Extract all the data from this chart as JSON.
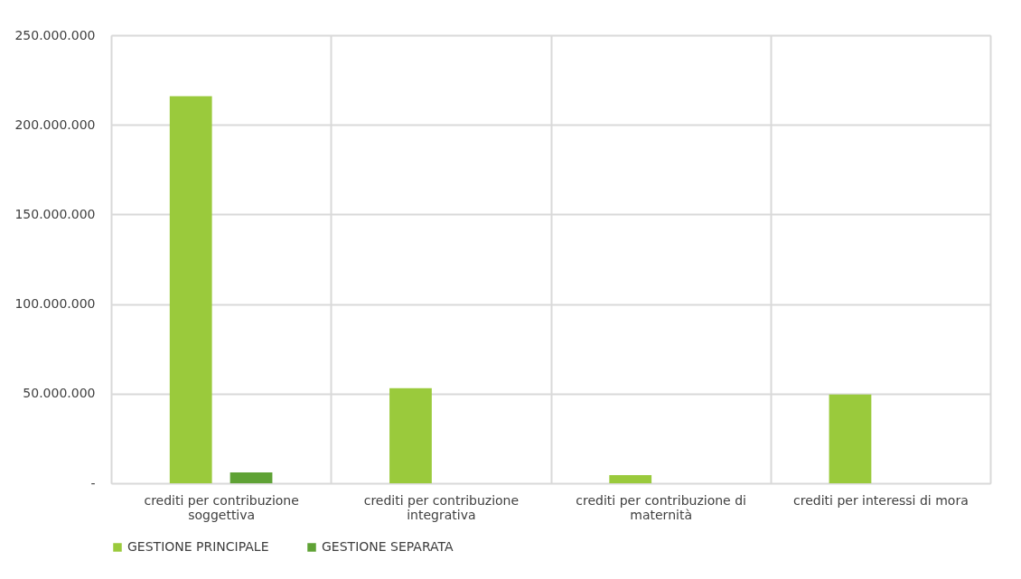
{
  "chart_data": {
    "type": "bar",
    "categories": [
      "crediti per contribuzione soggettiva",
      "crediti per contribuzione integrativa",
      "crediti per contribuzione di maternità",
      "crediti per interessi di mora"
    ],
    "series": [
      {
        "name": "GESTIONE PRINCIPALE",
        "color": "#9aca3c",
        "values": [
          216000000,
          53000000,
          4500000,
          49500000
        ]
      },
      {
        "name": "GESTIONE SEPARATA",
        "color": "#5fa235",
        "values": [
          6000000,
          null,
          null,
          null
        ]
      }
    ],
    "ylim": [
      0,
      250000000
    ],
    "yticks": [
      {
        "value": 0,
        "label": "-"
      },
      {
        "value": 50000000,
        "label": "50.000.000"
      },
      {
        "value": 100000000,
        "label": "100.000.000"
      },
      {
        "value": 150000000,
        "label": "150.000.000"
      },
      {
        "value": 200000000,
        "label": "200.000.000"
      },
      {
        "value": 250000000,
        "label": "250.000.000"
      }
    ],
    "grid": true,
    "legend": "bottom"
  }
}
